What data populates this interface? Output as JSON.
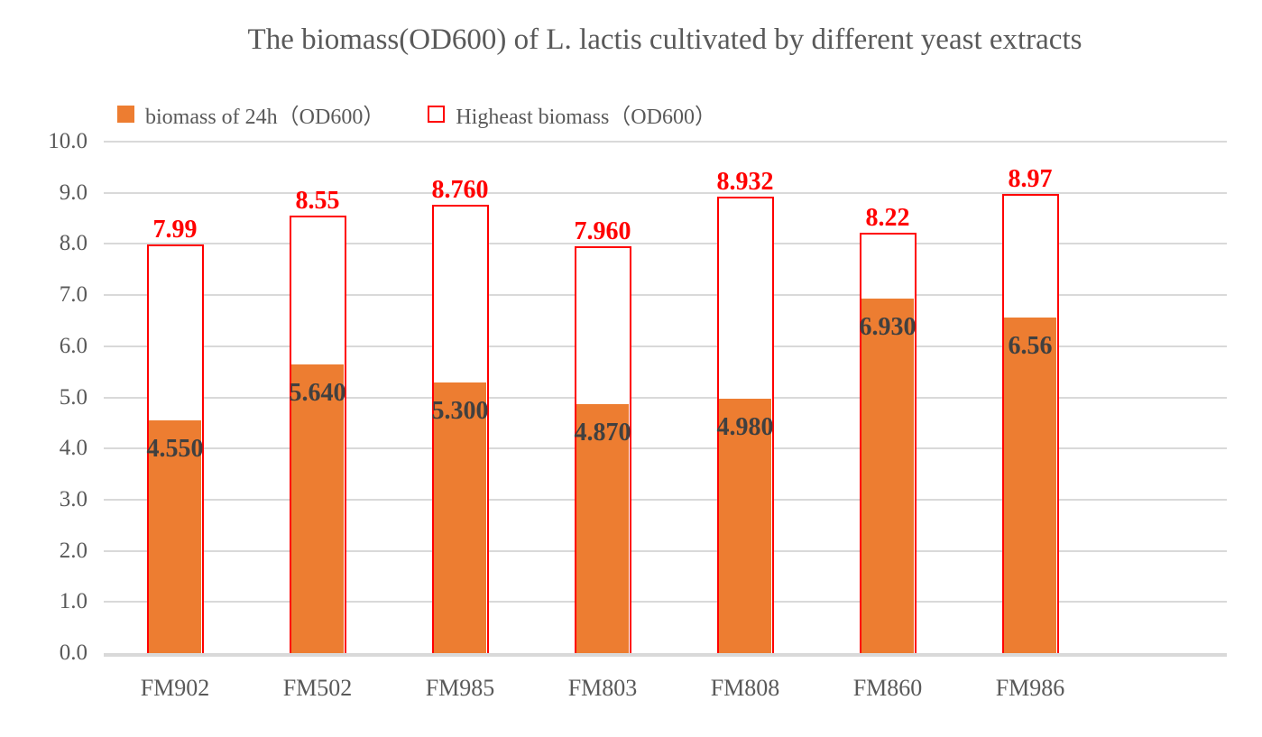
{
  "chart_data": {
    "type": "bar",
    "title": "The biomass(OD600) of L. lactis cultivated by different yeast extracts",
    "categories": [
      "FM902",
      "FM502",
      "FM985",
      "FM803",
      "FM808",
      "FM860",
      "FM986"
    ],
    "series": [
      {
        "name": "biomass of 24h（OD600）",
        "values": [
          4.55,
          5.64,
          5.3,
          4.87,
          4.98,
          6.93,
          6.56
        ],
        "data_labels": [
          "4.550",
          "5.640",
          "5.300",
          "4.870",
          "4.980",
          "6.930",
          "6.56"
        ],
        "style": "filled",
        "color": "#ED7D31",
        "label_color": "#404040"
      },
      {
        "name": "Higheast biomass（OD600）",
        "values": [
          7.99,
          8.55,
          8.76,
          7.96,
          8.932,
          8.22,
          8.97
        ],
        "data_labels": [
          "7.99",
          "8.55",
          "8.760",
          "7.960",
          "8.932",
          "8.22",
          "8.97"
        ],
        "style": "outline",
        "color": "#FF0000",
        "label_color": "#FF0000"
      }
    ],
    "ylim": [
      0,
      10
    ],
    "ytick_step": 1.0,
    "y_tick_labels": [
      "0.0",
      "1.0",
      "2.0",
      "3.0",
      "4.0",
      "5.0",
      "6.0",
      "7.0",
      "8.0",
      "9.0",
      "10.0"
    ],
    "grid": true,
    "legend_position": "top-left",
    "colors": {
      "gridline": "#D9D9D9",
      "axis_line": "#D9D9D9",
      "tick_text": "#595959",
      "title_text": "#595959"
    }
  }
}
